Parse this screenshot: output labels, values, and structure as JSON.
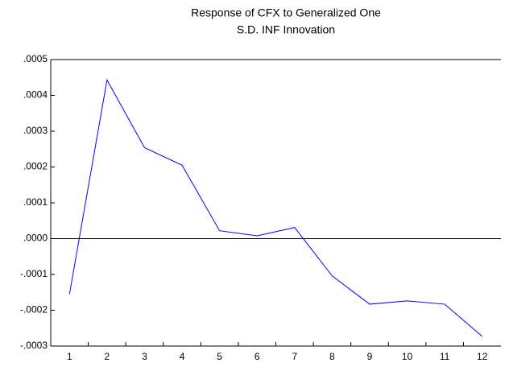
{
  "chart_data": {
    "type": "line",
    "title": [
      "Response of CFX to Generalized One",
      "S.D. INF Innovation"
    ],
    "categories": [
      "1",
      "2",
      "3",
      "4",
      "5",
      "6",
      "7",
      "8",
      "9",
      "10",
      "11",
      "12"
    ],
    "values": [
      -0.000155,
      0.000443,
      0.000254,
      0.000205,
      2.2e-05,
      8e-06,
      3.1e-05,
      -0.000104,
      -0.000183,
      -0.000174,
      -0.000183,
      -0.000273
    ],
    "color": "#0000ff",
    "ylim": [
      -0.0003,
      0.0005
    ],
    "yticks": [
      {
        "value": -0.0003,
        "label": "-.0003"
      },
      {
        "value": -0.0002,
        "label": "-.0002"
      },
      {
        "value": -0.0001,
        "label": "-.0001"
      },
      {
        "value": 0,
        "label": ".0000"
      },
      {
        "value": 0.0001,
        "label": ".0001"
      },
      {
        "value": 0.0002,
        "label": ".0002"
      },
      {
        "value": 0.0003,
        "label": ".0003"
      },
      {
        "value": 0.0004,
        "label": ".0004"
      },
      {
        "value": 0.0005,
        "label": ".0005"
      }
    ],
    "zero_line": true
  }
}
